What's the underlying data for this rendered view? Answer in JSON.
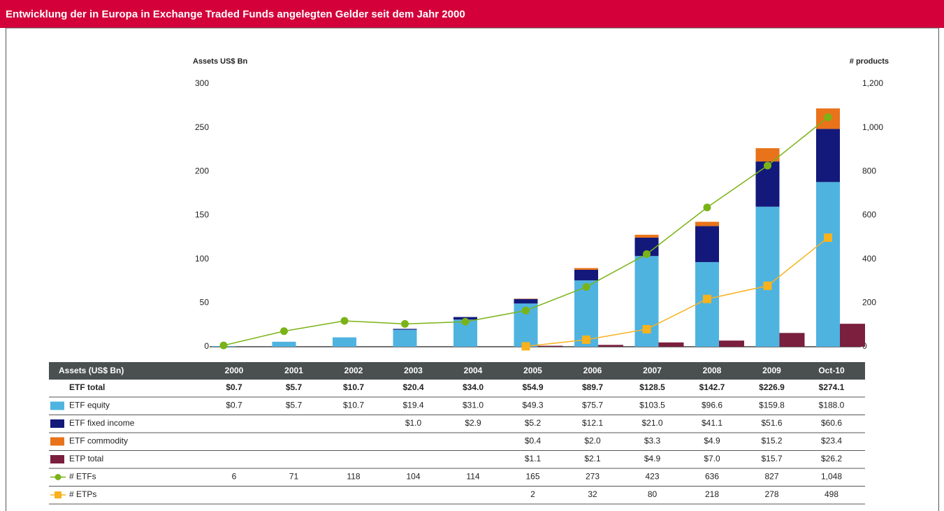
{
  "chart_data": {
    "type": "bar",
    "title": "Entwicklung der in Europa in Exchange Traded Funds angelegten Gelder seit dem Jahr 2000",
    "y_label": "Assets US$ Bn",
    "y2_label": "# products",
    "table_header": "Assets (US$ Bn)",
    "categories": [
      "2000",
      "2001",
      "2002",
      "2003",
      "2004",
      "2005",
      "2006",
      "2007",
      "2008",
      "2009",
      "Oct-10"
    ],
    "ylim": [
      0,
      300
    ],
    "yticks": [
      0,
      50,
      100,
      150,
      200,
      250,
      300
    ],
    "y2lim": [
      0,
      1200
    ],
    "y2ticks": [
      0,
      200,
      400,
      600,
      800,
      {
        "value": 1000,
        "label": "1,000"
      },
      {
        "value": 1200,
        "label": "1,200"
      }
    ],
    "totals": {
      "name": "ETF total",
      "values": [
        0.7,
        5.7,
        10.7,
        20.4,
        34.0,
        54.9,
        89.7,
        128.5,
        142.7,
        226.9,
        274.1
      ],
      "value_labels": [
        "$0.7",
        "$5.7",
        "$10.7",
        "$20.4",
        "$34.0",
        "$54.9",
        "$89.7",
        "$128.5",
        "$142.7",
        "$226.9",
        "$274.1"
      ]
    },
    "series": [
      {
        "name": "ETF equity",
        "color": "#4fb3e0",
        "type": "bar",
        "stack": true,
        "values": [
          0.7,
          5.7,
          10.7,
          19.4,
          31.0,
          49.3,
          75.7,
          103.5,
          96.6,
          159.8,
          188.0
        ],
        "value_labels": [
          "$0.7",
          "$5.7",
          "$10.7",
          "$19.4",
          "$31.0",
          "$49.3",
          "$75.7",
          "$103.5",
          "$96.6",
          "$159.8",
          "$188.0"
        ]
      },
      {
        "name": "ETF fixed income",
        "color": "#13197a",
        "type": "bar",
        "stack": true,
        "values": [
          null,
          null,
          null,
          1.0,
          2.9,
          5.2,
          12.1,
          21.0,
          41.1,
          51.6,
          60.6
        ],
        "value_labels": [
          null,
          null,
          null,
          "$1.0",
          "$2.9",
          "$5.2",
          "$12.1",
          "$21.0",
          "$41.1",
          "$51.6",
          "$60.6"
        ]
      },
      {
        "name": "ETF commodity",
        "color": "#e8731a",
        "type": "bar",
        "stack": true,
        "values": [
          null,
          null,
          null,
          null,
          null,
          0.4,
          2.0,
          3.3,
          4.9,
          15.2,
          23.4
        ],
        "value_labels": [
          null,
          null,
          null,
          null,
          null,
          "$0.4",
          "$2.0",
          "$3.3",
          "$4.9",
          "$15.2",
          "$23.4"
        ]
      },
      {
        "name": "ETP total",
        "color": "#7a1f3d",
        "type": "bar",
        "stack": false,
        "values": [
          null,
          null,
          null,
          null,
          null,
          1.1,
          2.1,
          4.9,
          7.0,
          15.7,
          26.2
        ],
        "value_labels": [
          null,
          null,
          null,
          null,
          null,
          "$1.1",
          "$2.1",
          "$4.9",
          "$7.0",
          "$15.7",
          "$26.2"
        ]
      },
      {
        "name": "# ETFs",
        "color": "#7ab317",
        "type": "line",
        "axis": "y2",
        "marker": "circle",
        "values": [
          6,
          71,
          118,
          104,
          114,
          165,
          273,
          423,
          636,
          827,
          1048
        ],
        "value_labels": [
          "6",
          "71",
          "118",
          "104",
          "114",
          "165",
          "273",
          "423",
          "636",
          "827",
          "1,048"
        ]
      },
      {
        "name": "# ETPs",
        "color": "#f7b21e",
        "type": "line",
        "axis": "y2",
        "marker": "square",
        "values": [
          null,
          null,
          null,
          null,
          null,
          2,
          32,
          80,
          218,
          278,
          498
        ],
        "value_labels": [
          null,
          null,
          null,
          null,
          null,
          "2",
          "32",
          "80",
          "218",
          "278",
          "498"
        ]
      }
    ]
  }
}
